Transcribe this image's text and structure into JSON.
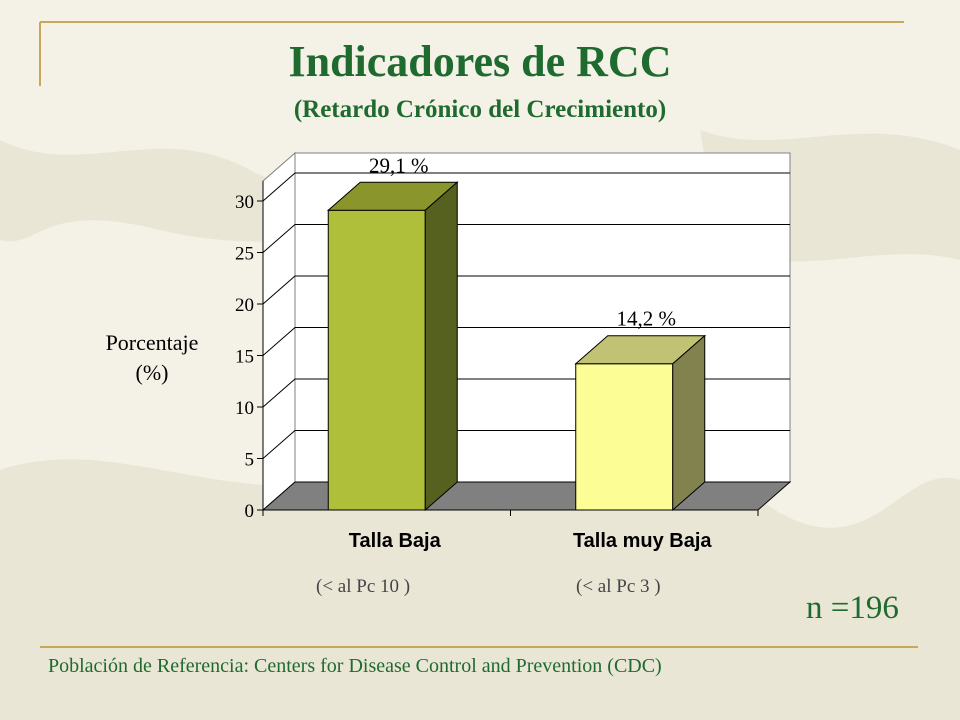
{
  "slide": {
    "title": "Indicadores de RCC",
    "subtitle": "(Retardo Crónico del Crecimiento)",
    "ylabel_line1": "Porcentaje",
    "ylabel_line2": "(%)",
    "sub_label_1": "(< al Pc 10 )",
    "sub_label_2": "(< al Pc 3 )",
    "sample_size": "n =196",
    "footer": "Población de Referencia:  Centers for Disease Control and Prevention (CDC)"
  },
  "colors": {
    "title_green": "#1f6a2f",
    "bar1_front": "#afbf3a",
    "bar1_top": "#8a962c",
    "bar1_side": "#56611f",
    "bar2_front": "#fdfd96",
    "bar2_top": "#c2c274",
    "bar2_side": "#82824f",
    "floor": "#808080"
  },
  "chart_data": {
    "type": "bar",
    "categories": [
      "Talla Baja",
      "Talla muy Baja"
    ],
    "values": [
      29.1,
      14.2
    ],
    "data_labels": [
      "29,1 %",
      "14,2 %"
    ],
    "yticks": [
      "0",
      "5",
      "10",
      "15",
      "20",
      "25",
      "30"
    ],
    "ylim": [
      0,
      30
    ],
    "ylabel": "Porcentaje (%)",
    "grid": true
  }
}
